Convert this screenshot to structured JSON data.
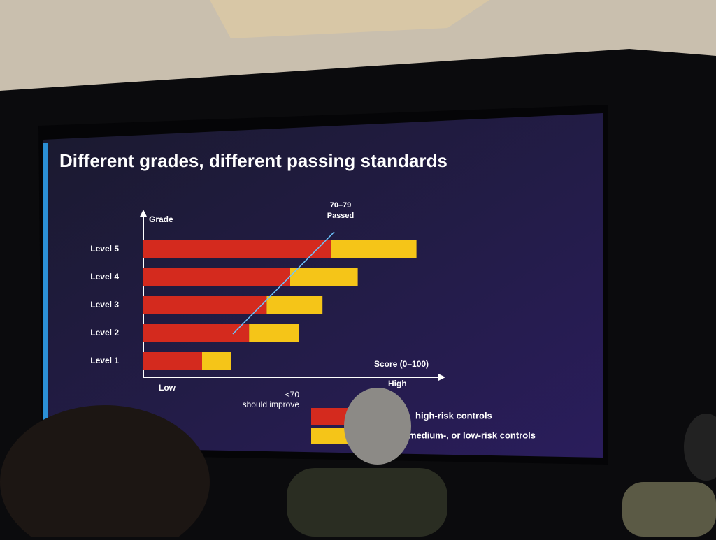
{
  "chart_data": {
    "type": "bar",
    "orientation": "horizontal",
    "stacked": true,
    "title": "Different grades, different passing standards",
    "y_label": "Grade",
    "x_label": "Score (0–100)",
    "x_low_label": "Low",
    "x_high_label": "High",
    "annotation": [
      "70–79",
      "Passed"
    ],
    "legend_note": [
      "<70",
      "should improve"
    ],
    "categories": [
      "Level 1",
      "Level 2",
      "Level 3",
      "Level 4",
      "Level 5"
    ],
    "xlim": [
      0,
      100
    ],
    "series": [
      {
        "name": "high-risk controls",
        "color": "#d42a1e",
        "values": [
          20,
          36,
          42,
          50,
          64
        ]
      },
      {
        "name": "medium-, or low-risk controls",
        "color": "#f5c518",
        "values": [
          10,
          17,
          19,
          23,
          29
        ]
      }
    ]
  }
}
